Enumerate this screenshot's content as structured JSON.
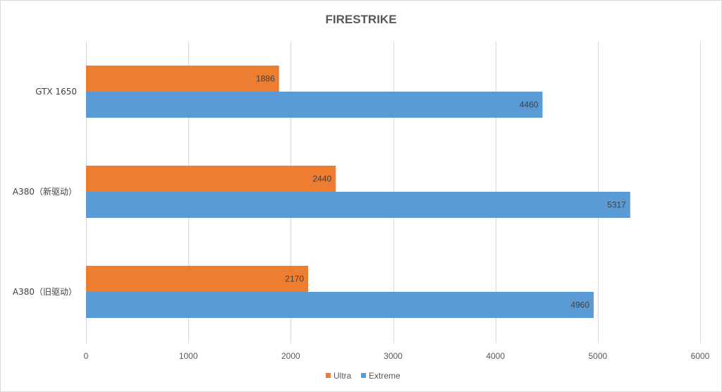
{
  "chart_data": {
    "type": "bar",
    "orientation": "horizontal",
    "title": "FIRESTRIKE",
    "categories": [
      "GTX 1650",
      "A380（新驱动）",
      "A380（旧驱动）"
    ],
    "series": [
      {
        "name": "Ultra",
        "color": "#ed7d31",
        "values": [
          1886,
          2440,
          2170
        ]
      },
      {
        "name": "Extreme",
        "color": "#5b9bd5",
        "values": [
          4460,
          5317,
          4960
        ]
      }
    ],
    "xlim": [
      0,
      6000
    ],
    "xticks": [
      0,
      1000,
      2000,
      3000,
      4000,
      5000,
      6000
    ],
    "grid": true,
    "legend_position": "bottom",
    "data_labels": true
  }
}
